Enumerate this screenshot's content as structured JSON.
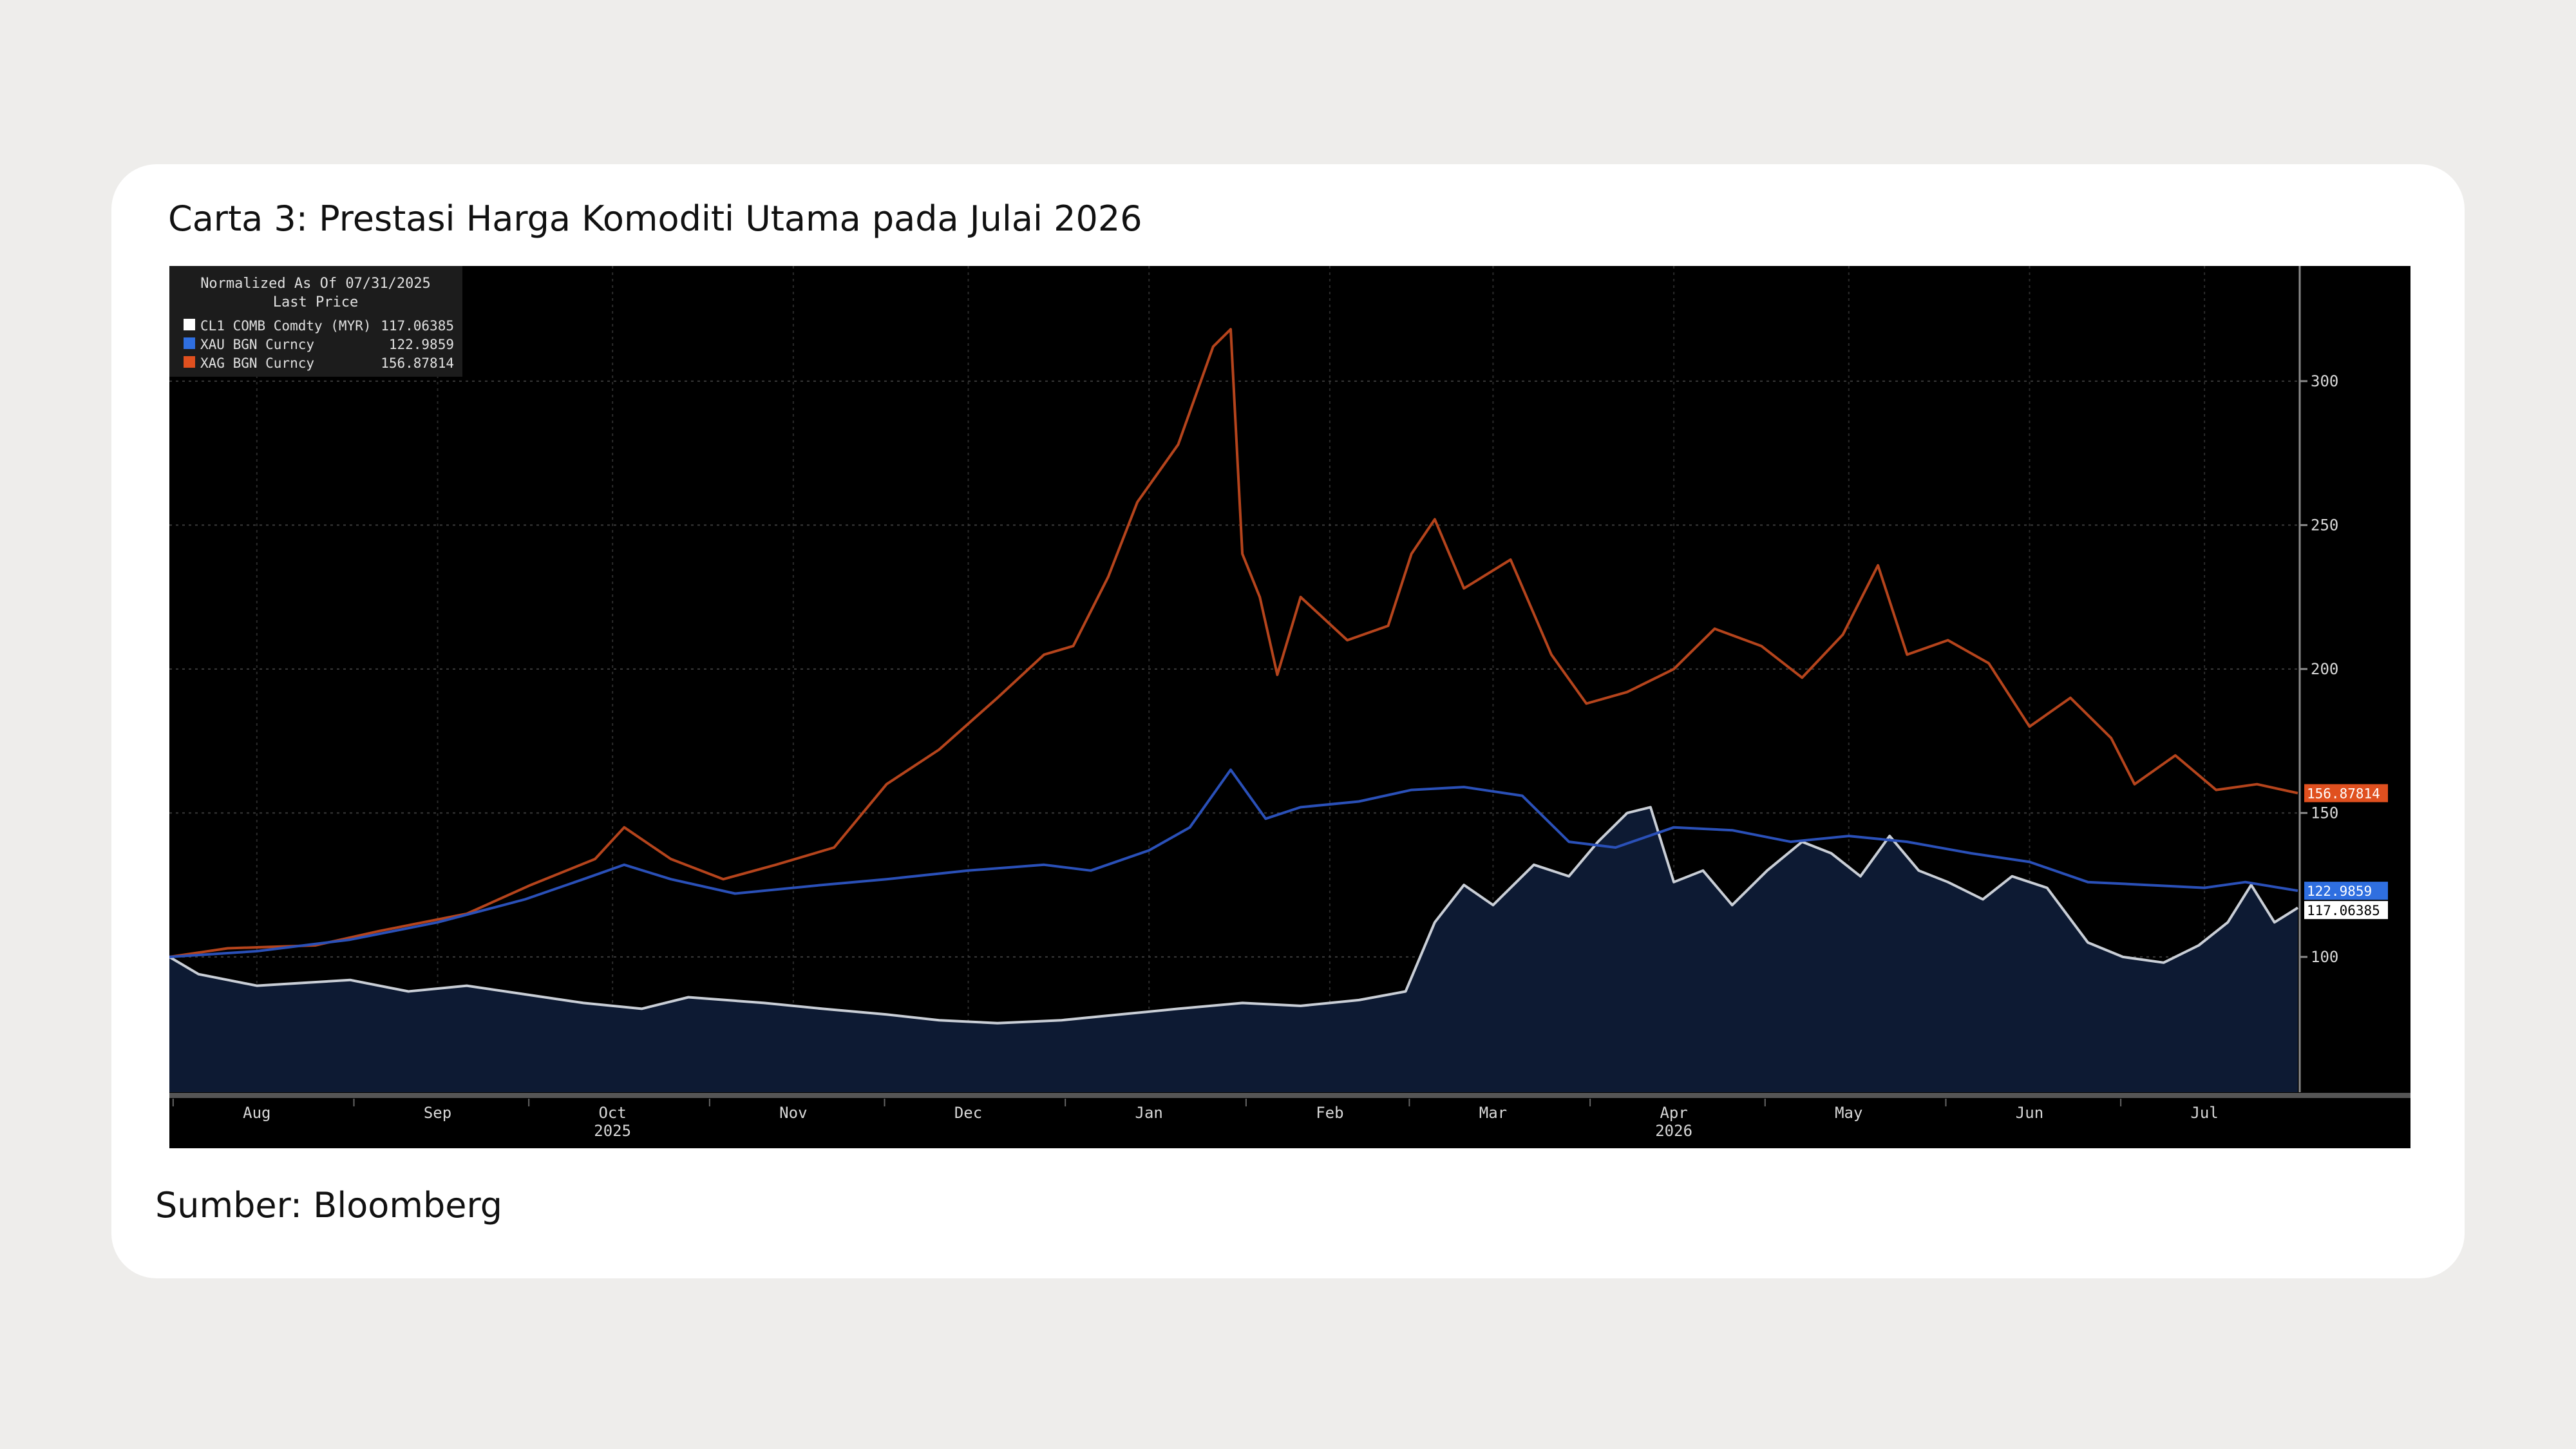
{
  "page": {
    "title": "Carta 3: Prestasi Harga Komoditi Utama pada Julai 2026",
    "source": "Sumber: Bloomberg"
  },
  "chart_data": {
    "type": "line",
    "legend": {
      "heading": "Normalized As Of 07/31/2025",
      "subheading": "Last Price",
      "placement": "top-left"
    },
    "x_axis": {
      "start": "2025-07-31",
      "end": "2026-07-31",
      "tick_labels": [
        "Aug",
        "Sep",
        "Oct",
        "Nov",
        "Dec",
        "Jan",
        "Feb",
        "Mar",
        "Apr",
        "May",
        "Jun",
        "Jul"
      ],
      "tick_dates": [
        "2025-08-15",
        "2025-09-15",
        "2025-10-15",
        "2025-11-15",
        "2025-12-15",
        "2026-01-15",
        "2026-02-15",
        "2026-03-15",
        "2026-04-15",
        "2026-05-15",
        "2026-06-15",
        "2026-07-15"
      ],
      "year_labels": [
        "2025",
        "2026"
      ],
      "year_label_dates": [
        "2025-10-15",
        "2026-04-15"
      ]
    },
    "y_axis": {
      "ylim": [
        53,
        340
      ],
      "ticks": [
        100,
        150,
        200,
        250,
        300
      ],
      "position": "right",
      "grid": true
    },
    "series": [
      {
        "name": "XAG BGN Curncy",
        "last_price": "156.87814",
        "color": "#e0501f",
        "line_color": "#b5441c",
        "area": false,
        "points": [
          [
            "2025-07-31",
            100
          ],
          [
            "2025-08-10",
            103
          ],
          [
            "2025-08-25",
            104
          ],
          [
            "2025-09-05",
            109
          ],
          [
            "2025-09-20",
            115
          ],
          [
            "2025-10-01",
            125
          ],
          [
            "2025-10-12",
            134
          ],
          [
            "2025-10-17",
            145
          ],
          [
            "2025-10-25",
            134
          ],
          [
            "2025-11-03",
            127
          ],
          [
            "2025-11-12",
            132
          ],
          [
            "2025-11-22",
            138
          ],
          [
            "2025-12-01",
            160
          ],
          [
            "2025-12-10",
            172
          ],
          [
            "2025-12-20",
            190
          ],
          [
            "2025-12-28",
            205
          ],
          [
            "2026-01-02",
            208
          ],
          [
            "2026-01-08",
            232
          ],
          [
            "2026-01-13",
            258
          ],
          [
            "2026-01-20",
            278
          ],
          [
            "2026-01-26",
            312
          ],
          [
            "2026-01-29",
            318
          ],
          [
            "2026-01-31",
            240
          ],
          [
            "2026-02-03",
            225
          ],
          [
            "2026-02-06",
            198
          ],
          [
            "2026-02-10",
            225
          ],
          [
            "2026-02-18",
            210
          ],
          [
            "2026-02-25",
            215
          ],
          [
            "2026-03-01",
            240
          ],
          [
            "2026-03-05",
            252
          ],
          [
            "2026-03-10",
            228
          ],
          [
            "2026-03-18",
            238
          ],
          [
            "2026-03-25",
            205
          ],
          [
            "2026-03-31",
            188
          ],
          [
            "2026-04-07",
            192
          ],
          [
            "2026-04-15",
            200
          ],
          [
            "2026-04-22",
            214
          ],
          [
            "2026-04-30",
            208
          ],
          [
            "2026-05-07",
            197
          ],
          [
            "2026-05-14",
            212
          ],
          [
            "2026-05-20",
            236
          ],
          [
            "2026-05-25",
            205
          ],
          [
            "2026-06-01",
            210
          ],
          [
            "2026-06-08",
            202
          ],
          [
            "2026-06-15",
            180
          ],
          [
            "2026-06-22",
            190
          ],
          [
            "2026-06-29",
            176
          ],
          [
            "2026-07-03",
            160
          ],
          [
            "2026-07-10",
            170
          ],
          [
            "2026-07-17",
            158
          ],
          [
            "2026-07-24",
            160
          ],
          [
            "2026-07-31",
            156.88
          ]
        ]
      },
      {
        "name": "XAU BGN Curncy",
        "last_price": "122.9859",
        "color": "#2f6fe0",
        "line_color": "#2a50b8",
        "area": false,
        "points": [
          [
            "2025-07-31",
            100
          ],
          [
            "2025-08-15",
            102
          ],
          [
            "2025-08-31",
            106
          ],
          [
            "2025-09-15",
            112
          ],
          [
            "2025-09-30",
            120
          ],
          [
            "2025-10-10",
            127
          ],
          [
            "2025-10-17",
            132
          ],
          [
            "2025-10-25",
            127
          ],
          [
            "2025-11-05",
            122
          ],
          [
            "2025-11-20",
            125
          ],
          [
            "2025-12-01",
            127
          ],
          [
            "2025-12-15",
            130
          ],
          [
            "2025-12-28",
            132
          ],
          [
            "2026-01-05",
            130
          ],
          [
            "2026-01-15",
            137
          ],
          [
            "2026-01-22",
            145
          ],
          [
            "2026-01-29",
            165
          ],
          [
            "2026-02-04",
            148
          ],
          [
            "2026-02-10",
            152
          ],
          [
            "2026-02-20",
            154
          ],
          [
            "2026-03-01",
            158
          ],
          [
            "2026-03-10",
            159
          ],
          [
            "2026-03-20",
            156
          ],
          [
            "2026-03-28",
            140
          ],
          [
            "2026-04-05",
            138
          ],
          [
            "2026-04-15",
            145
          ],
          [
            "2026-04-25",
            144
          ],
          [
            "2026-05-05",
            140
          ],
          [
            "2026-05-15",
            142
          ],
          [
            "2026-05-25",
            140
          ],
          [
            "2026-06-05",
            136
          ],
          [
            "2026-06-15",
            133
          ],
          [
            "2026-06-25",
            126
          ],
          [
            "2026-07-05",
            125
          ],
          [
            "2026-07-15",
            124
          ],
          [
            "2026-07-22",
            126
          ],
          [
            "2026-07-31",
            122.99
          ]
        ]
      },
      {
        "name": "CL1 COMB Comdty (MYR)",
        "last_price": "117.06385",
        "color": "#ffffff",
        "line_color": "#c9ced6",
        "area": true,
        "area_color": "#0d1a33",
        "points": [
          [
            "2025-07-31",
            100
          ],
          [
            "2025-08-05",
            94
          ],
          [
            "2025-08-15",
            90
          ],
          [
            "2025-08-31",
            92
          ],
          [
            "2025-09-10",
            88
          ],
          [
            "2025-09-20",
            90
          ],
          [
            "2025-09-30",
            87
          ],
          [
            "2025-10-10",
            84
          ],
          [
            "2025-10-20",
            82
          ],
          [
            "2025-10-28",
            86
          ],
          [
            "2025-11-10",
            84
          ],
          [
            "2025-11-20",
            82
          ],
          [
            "2025-12-01",
            80
          ],
          [
            "2025-12-10",
            78
          ],
          [
            "2025-12-20",
            77
          ],
          [
            "2025-12-31",
            78
          ],
          [
            "2026-01-10",
            80
          ],
          [
            "2026-01-20",
            82
          ],
          [
            "2026-01-31",
            84
          ],
          [
            "2026-02-10",
            83
          ],
          [
            "2026-02-20",
            85
          ],
          [
            "2026-02-28",
            88
          ],
          [
            "2026-03-05",
            112
          ],
          [
            "2026-03-10",
            125
          ],
          [
            "2026-03-15",
            118
          ],
          [
            "2026-03-22",
            132
          ],
          [
            "2026-03-28",
            128
          ],
          [
            "2026-04-02",
            140
          ],
          [
            "2026-04-07",
            150
          ],
          [
            "2026-04-11",
            152
          ],
          [
            "2026-04-15",
            126
          ],
          [
            "2026-04-20",
            130
          ],
          [
            "2026-04-25",
            118
          ],
          [
            "2026-05-01",
            130
          ],
          [
            "2026-05-07",
            140
          ],
          [
            "2026-05-12",
            136
          ],
          [
            "2026-05-17",
            128
          ],
          [
            "2026-05-22",
            142
          ],
          [
            "2026-05-27",
            130
          ],
          [
            "2026-06-01",
            126
          ],
          [
            "2026-06-07",
            120
          ],
          [
            "2026-06-12",
            128
          ],
          [
            "2026-06-18",
            124
          ],
          [
            "2026-06-25",
            105
          ],
          [
            "2026-07-01",
            100
          ],
          [
            "2026-07-08",
            98
          ],
          [
            "2026-07-14",
            104
          ],
          [
            "2026-07-19",
            112
          ],
          [
            "2026-07-23",
            125
          ],
          [
            "2026-07-27",
            112
          ],
          [
            "2026-07-31",
            117.06
          ]
        ]
      }
    ]
  }
}
